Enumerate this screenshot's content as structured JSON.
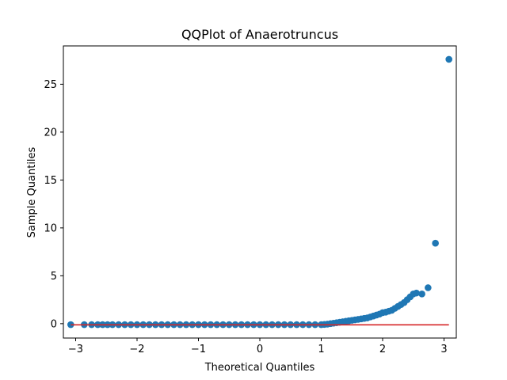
{
  "chart_data": {
    "type": "scatter",
    "title": "QQPlot of Anaerotruncus",
    "xlabel": "Theoretical Quantiles",
    "ylabel": "Sample Quantiles",
    "xlim": [
      -3.2,
      3.2
    ],
    "ylim": [
      -1.5,
      29.0
    ],
    "x_ticks": [
      -3,
      -2,
      -1,
      0,
      1,
      2,
      3
    ],
    "y_ticks": [
      0,
      5,
      10,
      15,
      20,
      25
    ],
    "grid": false,
    "legend": "none",
    "colors": {
      "points": "#1f77b4",
      "reference_line": "#d62728"
    },
    "reference_line": {
      "x": [
        -3.08,
        3.08
      ],
      "y": [
        -0.12,
        -0.12
      ]
    },
    "series": [
      {
        "values_x": [
          -3.08,
          -2.86,
          -2.74,
          -2.64,
          -2.56,
          -2.48,
          -2.4,
          -2.3,
          -2.2,
          -2.1,
          -2.0,
          -1.9,
          -1.8,
          -1.7,
          -1.6,
          -1.5,
          -1.4,
          -1.3,
          -1.2,
          -1.1,
          -1.0,
          -0.9,
          -0.8,
          -0.7,
          -0.6,
          -0.5,
          -0.4,
          -0.3,
          -0.2,
          -0.1,
          0.0,
          0.1,
          0.2,
          0.3,
          0.4,
          0.5,
          0.6,
          0.7,
          0.8,
          0.9,
          1.0,
          1.05,
          1.1,
          1.15,
          1.2,
          1.25,
          1.3,
          1.35,
          1.4,
          1.45,
          1.5,
          1.55,
          1.6,
          1.65,
          1.7,
          1.75,
          1.8,
          1.85,
          1.9,
          1.95,
          2.0,
          2.05,
          2.1,
          2.15,
          2.2,
          2.25,
          2.3,
          2.35,
          2.4,
          2.45,
          2.5,
          2.55,
          2.64,
          2.74,
          2.86,
          3.08
        ],
        "values_y": [
          -0.1,
          -0.1,
          -0.1,
          -0.1,
          -0.1,
          -0.1,
          -0.1,
          -0.1,
          -0.1,
          -0.1,
          -0.1,
          -0.1,
          -0.1,
          -0.1,
          -0.1,
          -0.1,
          -0.1,
          -0.1,
          -0.1,
          -0.1,
          -0.1,
          -0.1,
          -0.1,
          -0.1,
          -0.1,
          -0.1,
          -0.1,
          -0.1,
          -0.1,
          -0.1,
          -0.1,
          -0.1,
          -0.1,
          -0.1,
          -0.1,
          -0.1,
          -0.1,
          -0.1,
          -0.1,
          -0.1,
          -0.1,
          -0.08,
          -0.05,
          0.0,
          0.05,
          0.1,
          0.15,
          0.2,
          0.25,
          0.3,
          0.35,
          0.4,
          0.45,
          0.5,
          0.55,
          0.6,
          0.7,
          0.8,
          0.9,
          1.0,
          1.15,
          1.2,
          1.3,
          1.4,
          1.6,
          1.8,
          2.0,
          2.2,
          2.5,
          2.8,
          3.1,
          3.2,
          3.1,
          3.75,
          8.4,
          27.6
        ]
      }
    ]
  }
}
